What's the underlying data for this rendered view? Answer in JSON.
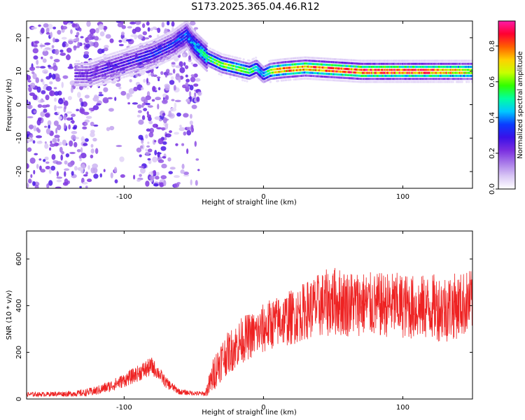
{
  "title": "S173.2025.365.04.46.R12",
  "colors": {
    "snr_line": "#ee2222",
    "colormap": [
      "#ffffff",
      "#d9c7f5",
      "#a97be9",
      "#7a2ee0",
      "#3a10e8",
      "#0a3cff",
      "#00c8ff",
      "#00ffa0",
      "#30ff00",
      "#c8ff00",
      "#ffd000",
      "#ff6000",
      "#ff0030",
      "#ff1aa8"
    ]
  },
  "chart_data": [
    {
      "type": "heatmap",
      "xlabel": "Height of straight line (km)",
      "ylabel": "Frequency (Hz)",
      "xlim": [
        -170,
        150
      ],
      "ylim": [
        -25,
        25
      ],
      "xticks": [
        -100,
        0,
        100
      ],
      "yticks": [
        -20,
        -10,
        0,
        10,
        20
      ],
      "colorbar": {
        "label": "Normalized spectral amplitude",
        "range": [
          0,
          0.94
        ],
        "ticks": [
          0.0,
          0.2,
          0.4,
          0.6,
          0.8
        ]
      },
      "ridge": {
        "description_points_x": [
          -125,
          -110,
          -95,
          -80,
          -65,
          -55,
          -50,
          -45,
          -40,
          -30,
          -20,
          -10,
          -5,
          0,
          5,
          15,
          30,
          50,
          70,
          90,
          110,
          130,
          150
        ],
        "frequency_hz": [
          9,
          11,
          13,
          15,
          18,
          21,
          18,
          16,
          14,
          12,
          11,
          10,
          11,
          9,
          10,
          10.5,
          11,
          10.5,
          10,
          10,
          10,
          10,
          10
        ],
        "peak_amplitude": [
          0.25,
          0.3,
          0.3,
          0.35,
          0.35,
          0.4,
          0.45,
          0.5,
          0.55,
          0.7,
          0.65,
          0.6,
          0.55,
          0.45,
          0.7,
          0.85,
          0.85,
          0.9,
          0.9,
          0.9,
          0.9,
          0.85,
          0.75
        ]
      }
    },
    {
      "type": "line",
      "xlabel": "Height of straight line (km)",
      "ylabel": "SNR (10 * v/v)",
      "xlim": [
        -170,
        150
      ],
      "ylim": [
        0,
        720
      ],
      "xticks": [
        -100,
        0,
        100
      ],
      "yticks": [
        0,
        200,
        400,
        600
      ],
      "series": [
        {
          "x": [
            -170,
            -160,
            -150,
            -140,
            -130,
            -120,
            -110,
            -100,
            -90,
            -85,
            -80,
            -75,
            -70,
            -60,
            -50,
            -42,
            -38,
            -35,
            -30,
            -25,
            -20,
            -15,
            -10,
            -5,
            0,
            5,
            10,
            15,
            20,
            25,
            30,
            40,
            50,
            60,
            70,
            80,
            90,
            100,
            110,
            120,
            130,
            140,
            150
          ],
          "values": [
            20,
            20,
            22,
            22,
            25,
            35,
            55,
            80,
            110,
            125,
            140,
            110,
            70,
            30,
            25,
            22,
            70,
            120,
            170,
            200,
            225,
            255,
            270,
            280,
            300,
            320,
            330,
            340,
            350,
            360,
            380,
            400,
            420,
            410,
            410,
            400,
            405,
            400,
            390,
            395,
            390,
            400,
            420
          ],
          "spread": [
            10,
            10,
            10,
            12,
            15,
            20,
            25,
            30,
            35,
            40,
            40,
            30,
            25,
            12,
            10,
            10,
            60,
            80,
            90,
            90,
            100,
            100,
            100,
            100,
            110,
            110,
            110,
            115,
            120,
            120,
            125,
            140,
            150,
            145,
            140,
            140,
            140,
            140,
            140,
            140,
            150,
            140,
            140
          ]
        }
      ]
    }
  ]
}
